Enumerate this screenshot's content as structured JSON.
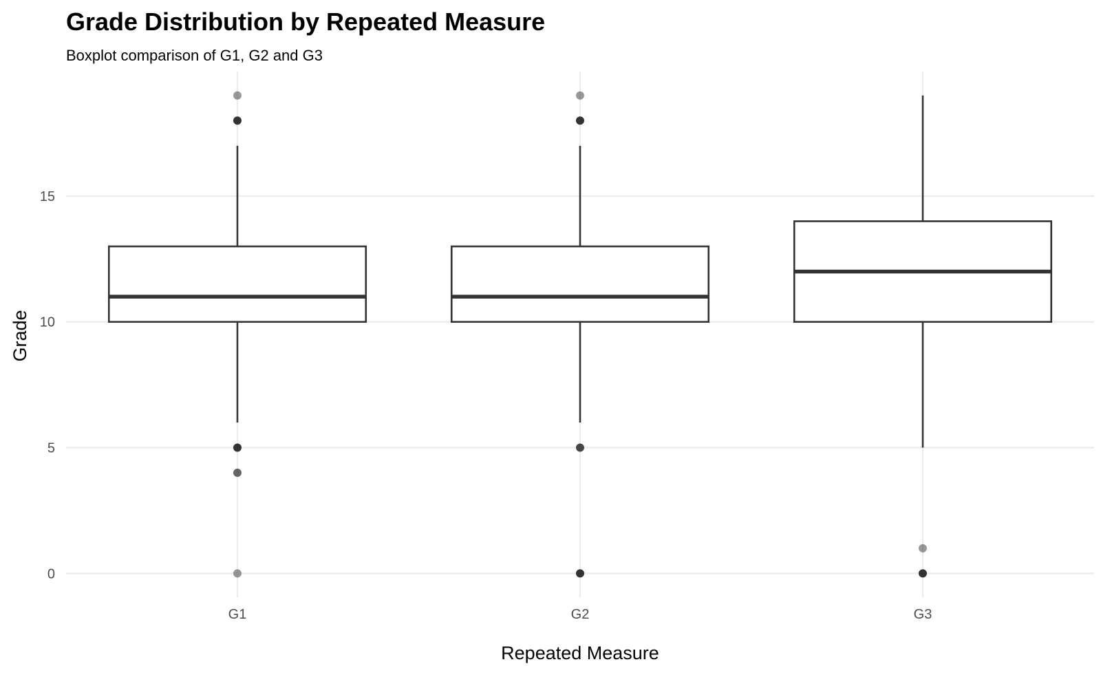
{
  "chart_data": {
    "type": "boxplot",
    "title": "Grade Distribution by Repeated Measure",
    "subtitle": "Boxplot comparison of G1, G2 and G3",
    "xlabel": "Repeated Measure",
    "ylabel": "Grade",
    "categories": [
      "G1",
      "G2",
      "G3"
    ],
    "ylim": [
      -0.95,
      19.95
    ],
    "yticks": [
      0,
      5,
      10,
      15
    ],
    "grid": true,
    "legend": "none",
    "boxes": [
      {
        "category": "G1",
        "whisker_low": 6,
        "q1": 10,
        "median": 11,
        "q3": 13,
        "whisker_high": 17,
        "outliers": [
          {
            "value": 19,
            "opacity": 0.5
          },
          {
            "value": 18,
            "opacity": 1.0
          },
          {
            "value": 5,
            "opacity": 1.0
          },
          {
            "value": 4,
            "opacity": 0.75
          },
          {
            "value": 0,
            "opacity": 0.5
          }
        ]
      },
      {
        "category": "G2",
        "whisker_low": 6,
        "q1": 10,
        "median": 11,
        "q3": 13,
        "whisker_high": 17,
        "outliers": [
          {
            "value": 19,
            "opacity": 0.5
          },
          {
            "value": 18,
            "opacity": 1.0
          },
          {
            "value": 5,
            "opacity": 0.9
          },
          {
            "value": 0,
            "opacity": 1.0
          }
        ]
      },
      {
        "category": "G3",
        "whisker_low": 5,
        "q1": 10,
        "median": 12,
        "q3": 14,
        "whisker_high": 19,
        "outliers": [
          {
            "value": 1,
            "opacity": 0.5
          },
          {
            "value": 0,
            "opacity": 1.0
          }
        ]
      }
    ],
    "colors": {
      "box_line": "#333333",
      "box_fill": "#ffffff",
      "grid": "#ebebeb",
      "tick_text": "#4d4d4d"
    }
  }
}
